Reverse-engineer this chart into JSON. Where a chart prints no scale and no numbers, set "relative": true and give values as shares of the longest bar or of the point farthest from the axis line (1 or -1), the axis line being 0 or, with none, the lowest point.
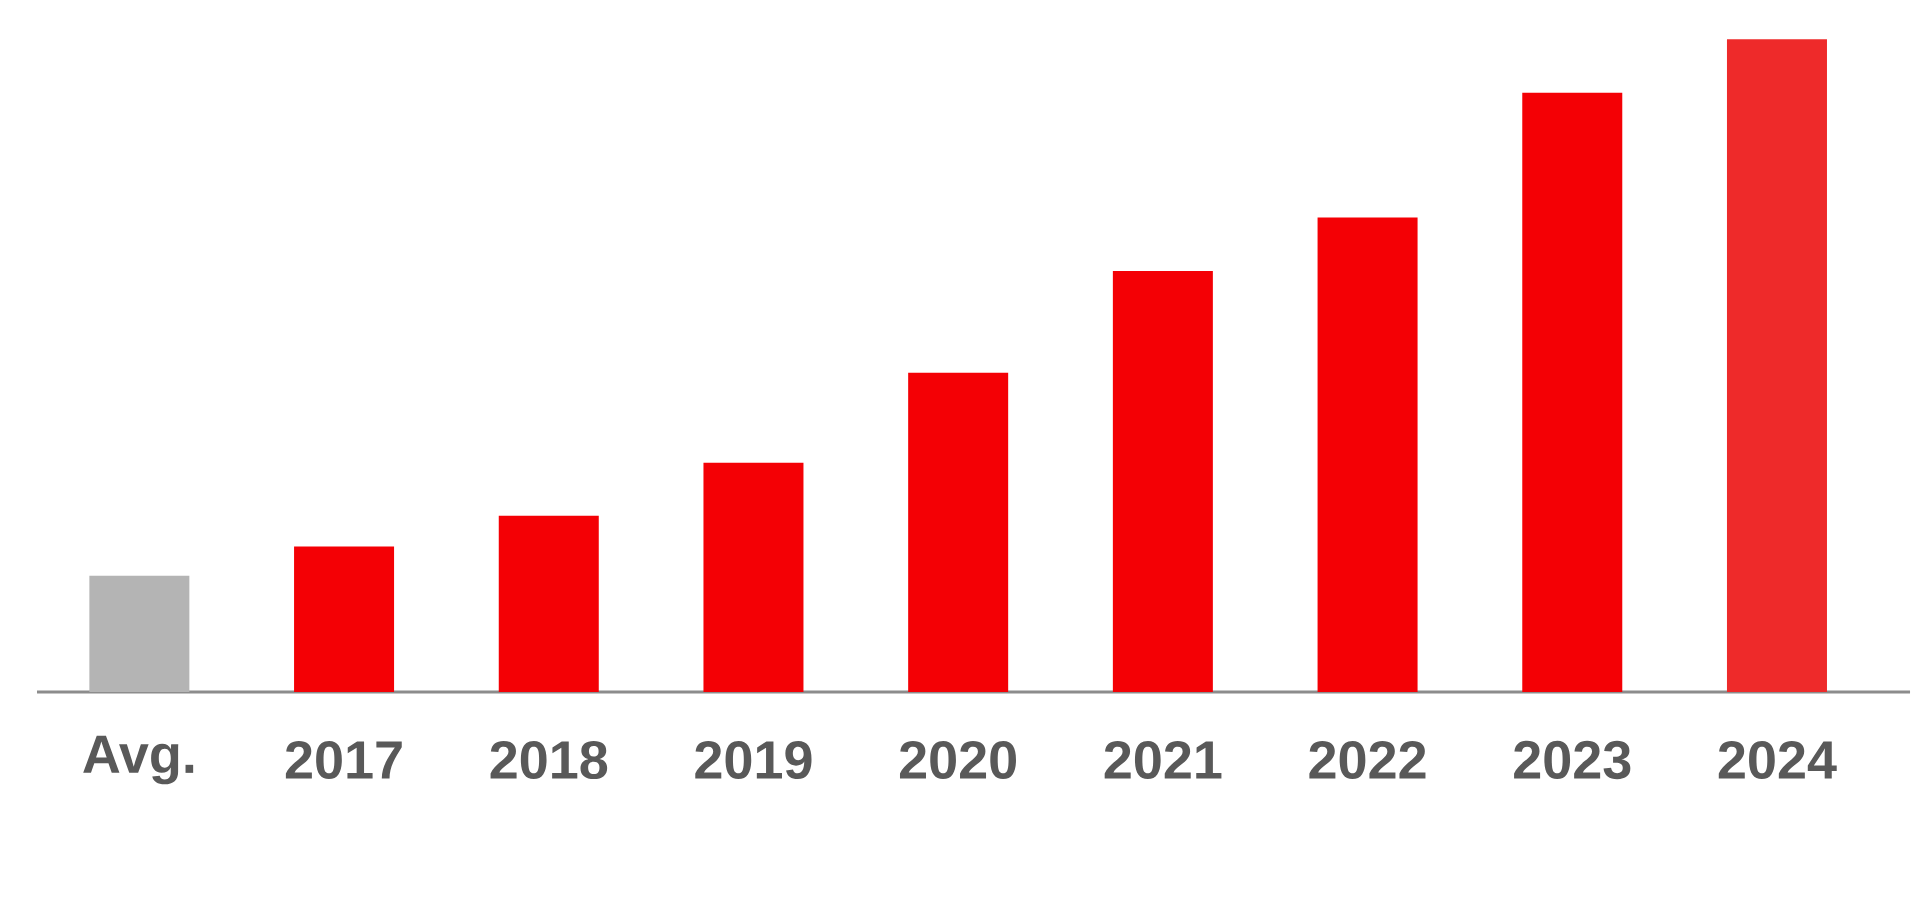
{
  "chart_data": {
    "type": "bar",
    "relative": true,
    "categories": [
      "Avg.",
      "2017",
      "2018",
      "2019",
      "2020",
      "2021",
      "2022",
      "2023",
      "2024"
    ],
    "values": [
      0.178,
      0.223,
      0.27,
      0.351,
      0.489,
      0.645,
      0.727,
      0.918,
      1
    ],
    "colors": [
      "#b4b4b4",
      "#f40005",
      "#f40005",
      "#f40005",
      "#f40005",
      "#f40005",
      "#f40005",
      "#f40005",
      "#ee2a2a"
    ]
  }
}
